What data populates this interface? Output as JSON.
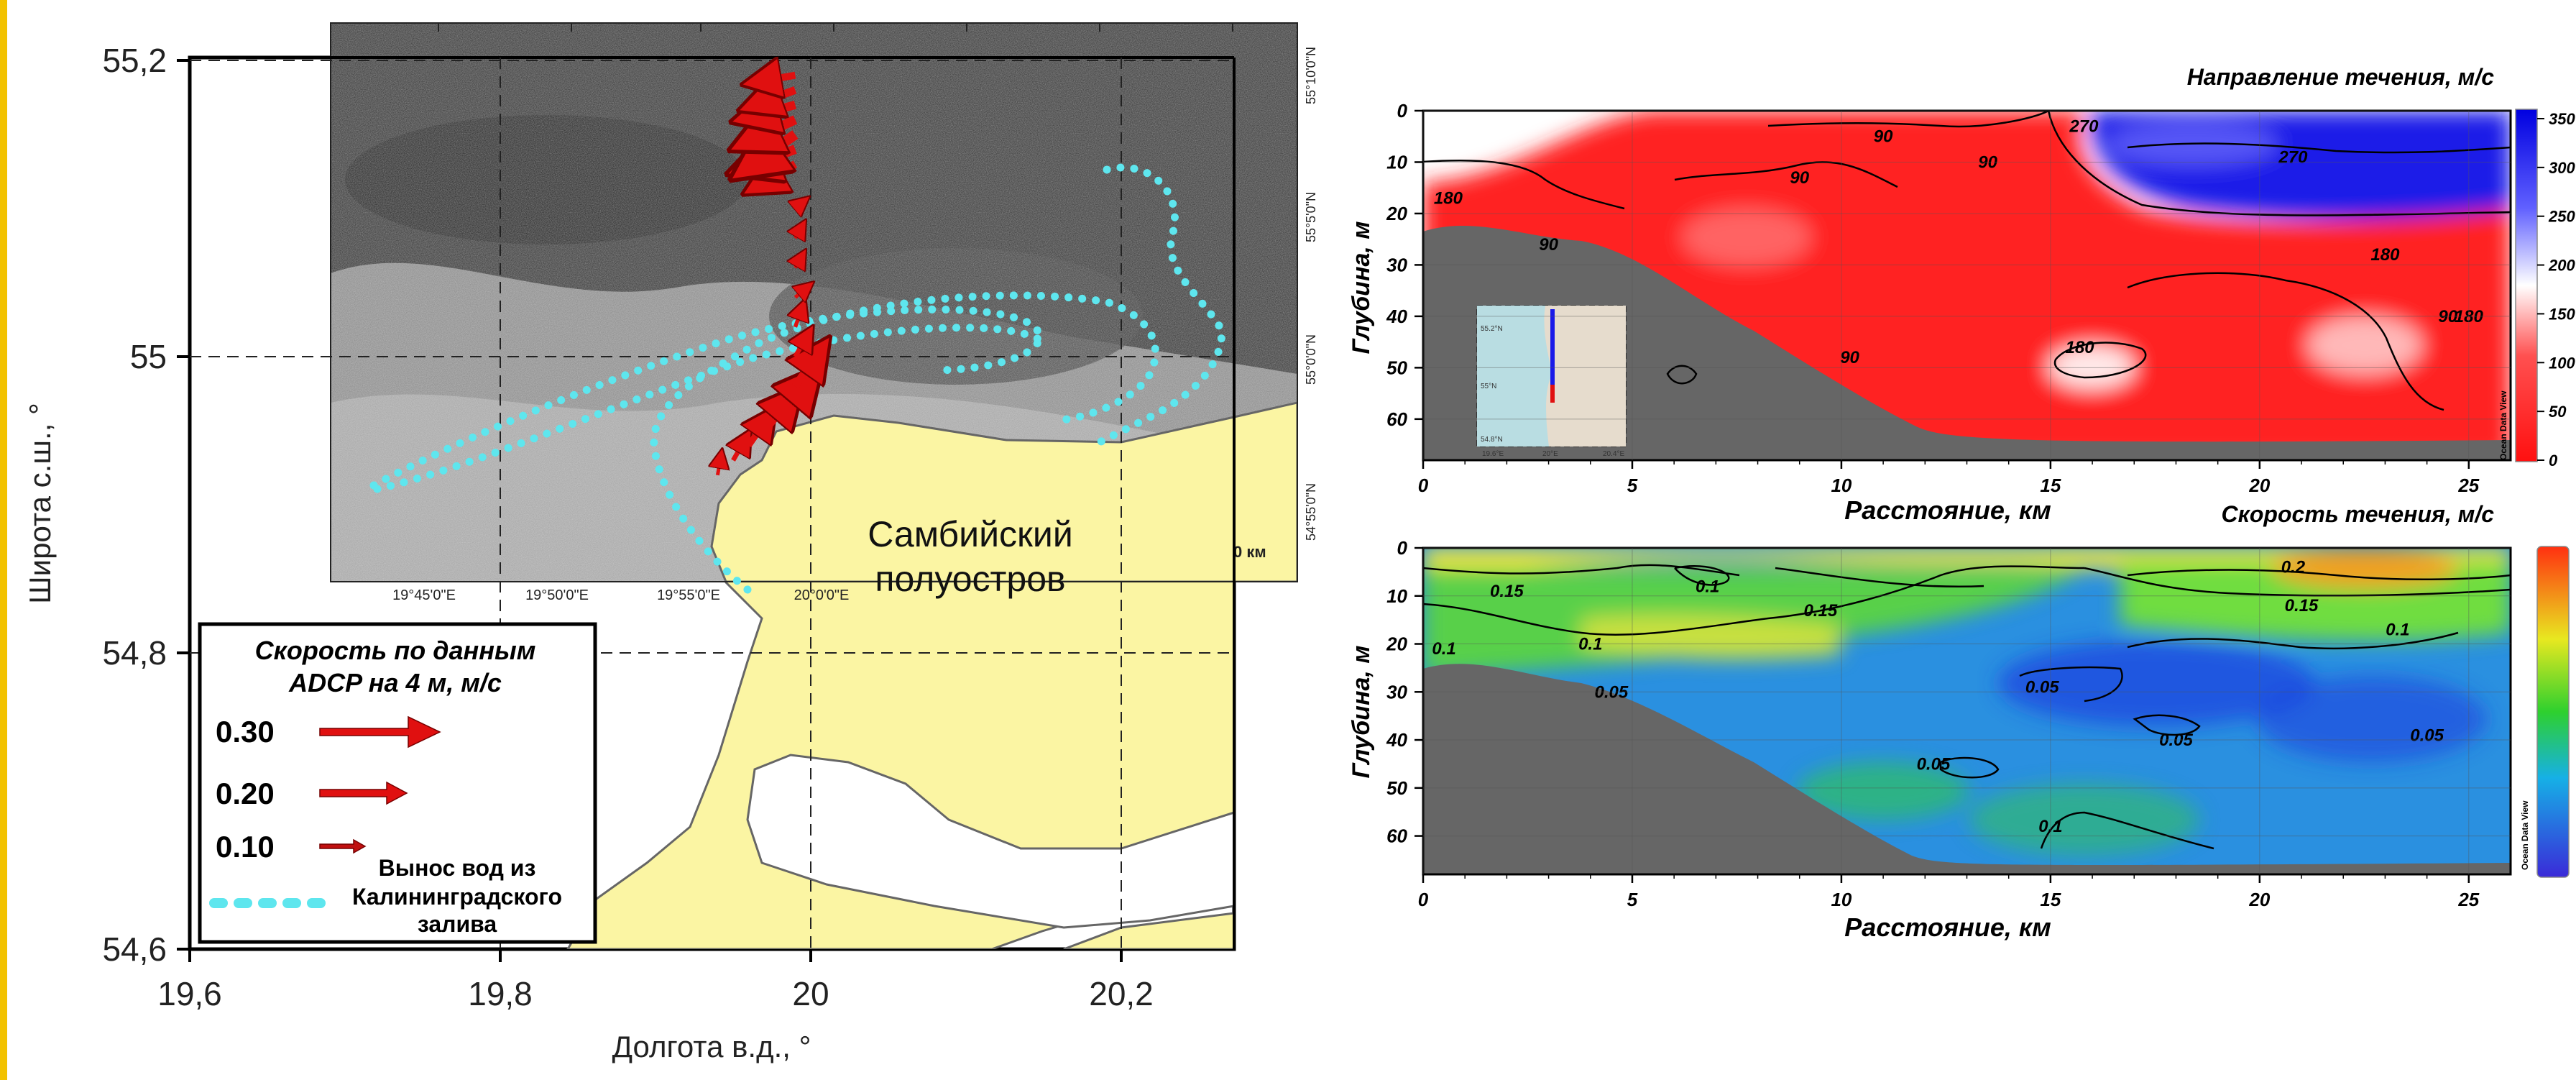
{
  "colors": {
    "page_edge": "#f2c200",
    "land": "#fbf5a3",
    "land_border": "#666666",
    "sea_dark": "#2e2e2e",
    "plume": "#5ee6ee",
    "arrow": "#e01010",
    "direction_east": "#ff1a1a",
    "direction_west": "#1414e6",
    "bottom_fill": "#666666"
  },
  "chart_data": [
    {
      "type": "map",
      "ylabel": "Широта с.ш., °",
      "xlabel": "Долгота в.д., °",
      "xlim": [
        19.6,
        20.27
      ],
      "ylim": [
        54.6,
        55.2
      ],
      "x_ticks": [
        "19,6",
        "19,8",
        "20",
        "20,2"
      ],
      "y_ticks": [
        "54,6",
        "54,8",
        "55",
        "55,2"
      ],
      "land_label": [
        "Самбийский",
        "полуостров"
      ],
      "legend": {
        "title": [
          "Скорость по данным",
          "ADCP на 4 м, м/с"
        ],
        "speeds": [
          "0.30",
          "0.20",
          "0.10"
        ],
        "plume_label": [
          "Вынос вод из",
          "Калининградского",
          "залива"
        ]
      },
      "satellite_inset": {
        "lon_ticks": [
          "19°45'0\"E",
          "19°50'0\"E",
          "19°55'0\"E",
          "20°0'0\"E"
        ],
        "lat_ticks": [
          "55°10'0\"N",
          "55°5'0\"N",
          "55°0'0\"N",
          "54°55'0\"N"
        ],
        "scale_label": "0 км"
      },
      "adcp_arrows": [
        {
          "lon": 19.94,
          "lat": 54.92,
          "dir": 80,
          "speed": 0.09
        },
        {
          "lon": 19.95,
          "lat": 54.93,
          "dir": 60,
          "speed": 0.12
        },
        {
          "lon": 19.96,
          "lat": 54.94,
          "dir": 55,
          "speed": 0.16
        },
        {
          "lon": 19.97,
          "lat": 54.95,
          "dir": 50,
          "speed": 0.2
        },
        {
          "lon": 19.98,
          "lat": 54.96,
          "dir": 50,
          "speed": 0.22
        },
        {
          "lon": 19.99,
          "lat": 54.98,
          "dir": 55,
          "speed": 0.2
        },
        {
          "lon": 19.99,
          "lat": 55.0,
          "dir": 60,
          "speed": 0.12
        },
        {
          "lon": 19.99,
          "lat": 55.02,
          "dir": 70,
          "speed": 0.1
        },
        {
          "lon": 19.99,
          "lat": 55.04,
          "dir": 40,
          "speed": 0.08
        },
        {
          "lon": 19.99,
          "lat": 55.06,
          "dir": 60,
          "speed": 0.07
        },
        {
          "lon": 19.99,
          "lat": 55.08,
          "dir": 60,
          "speed": 0.07
        },
        {
          "lon": 19.99,
          "lat": 55.1,
          "dir": 40,
          "speed": 0.06
        },
        {
          "lon": 19.99,
          "lat": 55.13,
          "dir": 210,
          "speed": 0.2
        },
        {
          "lon": 19.99,
          "lat": 55.14,
          "dir": 200,
          "speed": 0.24
        },
        {
          "lon": 19.99,
          "lat": 55.15,
          "dir": 215,
          "speed": 0.26
        },
        {
          "lon": 19.99,
          "lat": 55.16,
          "dir": 205,
          "speed": 0.24
        },
        {
          "lon": 19.99,
          "lat": 55.17,
          "dir": 195,
          "speed": 0.22
        },
        {
          "lon": 19.99,
          "lat": 55.18,
          "dir": 200,
          "speed": 0.2
        },
        {
          "lon": 19.99,
          "lat": 55.19,
          "dir": 190,
          "speed": 0.18
        }
      ]
    },
    {
      "type": "contour",
      "title": "Направление течения, м/с",
      "xlabel": "Расстояние, км",
      "ylabel": "Глубина, м",
      "xlim": [
        0,
        26
      ],
      "ylim": [
        0,
        68
      ],
      "x_ticks": [
        "0",
        "5",
        "10",
        "15",
        "20",
        "25"
      ],
      "y_ticks": [
        "0",
        "10",
        "20",
        "30",
        "40",
        "50",
        "60"
      ],
      "colorbar_ticks": [
        "0",
        "50",
        "100",
        "150",
        "200",
        "250",
        "300",
        "350"
      ],
      "watermark": "Ocean Data View",
      "contour_labels": [
        {
          "text": "180",
          "x": 0.6,
          "y": 17
        },
        {
          "text": "90",
          "x": 3.0,
          "y": 26
        },
        {
          "text": "90",
          "x": 9.0,
          "y": 13
        },
        {
          "text": "90",
          "x": 11.0,
          "y": 5
        },
        {
          "text": "90",
          "x": 13.5,
          "y": 10
        },
        {
          "text": "270",
          "x": 15.8,
          "y": 3
        },
        {
          "text": "270",
          "x": 20.8,
          "y": 9
        },
        {
          "text": "180",
          "x": 23.0,
          "y": 28
        },
        {
          "text": "180",
          "x": 15.7,
          "y": 46
        },
        {
          "text": "90",
          "x": 24.5,
          "y": 40
        },
        {
          "text": "180",
          "x": 25.0,
          "y": 40
        },
        {
          "text": "90",
          "x": 10.2,
          "y": 48
        }
      ],
      "inset_map": {
        "lat_ticks": [
          "55.2°N",
          "55°N",
          "54.8°N"
        ],
        "lon_ticks": [
          "19.6°E",
          "20°E",
          "20.4°E"
        ]
      }
    },
    {
      "type": "contour",
      "title": "Скорость течения, м/с",
      "xlabel": "Расстояние, км",
      "ylabel": "Глубина, м",
      "xlim": [
        0,
        26
      ],
      "ylim": [
        0,
        68
      ],
      "x_ticks": [
        "0",
        "5",
        "10",
        "15",
        "20",
        "25"
      ],
      "y_ticks": [
        "0",
        "10",
        "20",
        "30",
        "40",
        "50",
        "60"
      ],
      "watermark": "Ocean Data View",
      "contour_labels": [
        {
          "text": "0.15",
          "x": 2.0,
          "y": 9
        },
        {
          "text": "0.1",
          "x": 6.8,
          "y": 8
        },
        {
          "text": "0.15",
          "x": 9.5,
          "y": 13
        },
        {
          "text": "0.1",
          "x": 4.0,
          "y": 20
        },
        {
          "text": "0.1",
          "x": 0.5,
          "y": 21
        },
        {
          "text": "0.05",
          "x": 4.5,
          "y": 30
        },
        {
          "text": "0.05",
          "x": 14.8,
          "y": 29
        },
        {
          "text": "0.2",
          "x": 20.8,
          "y": 4
        },
        {
          "text": "0.15",
          "x": 21.0,
          "y": 12
        },
        {
          "text": "0.1",
          "x": 23.3,
          "y": 17
        },
        {
          "text": "0.05",
          "x": 18.0,
          "y": 40
        },
        {
          "text": "0.05",
          "x": 24.0,
          "y": 39
        },
        {
          "text": "0.05",
          "x": 12.2,
          "y": 45
        },
        {
          "text": "0.1",
          "x": 15.0,
          "y": 58
        }
      ]
    }
  ]
}
